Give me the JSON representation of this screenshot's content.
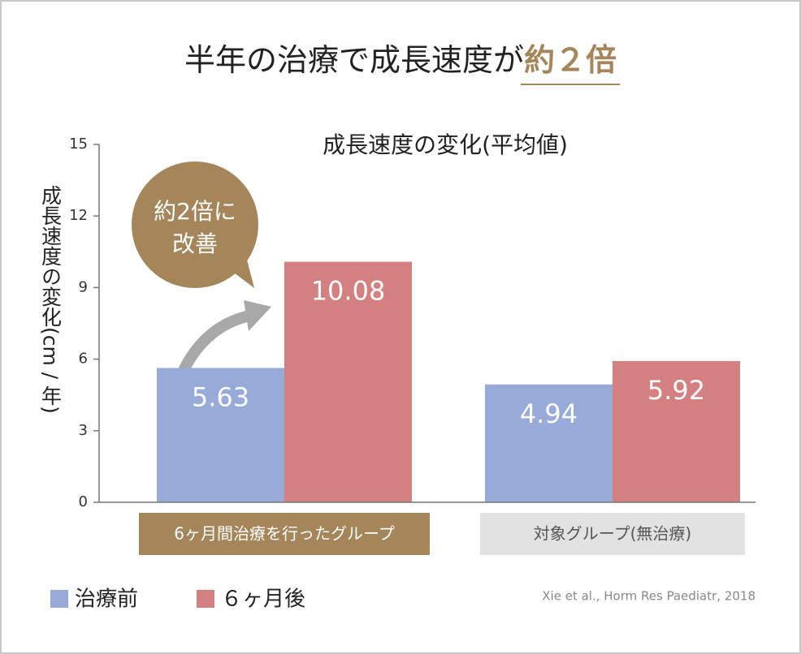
{
  "chart_data": {
    "type": "bar",
    "title": "半年の治療で成長速度が",
    "title_emphasis": "約２倍",
    "subtitle": "成長速度の変化(平均値)",
    "ylabel": "成長速度の変化(cm / 年)",
    "categories": [
      "6ヶ月間治療を行ったグループ",
      "対象グループ(無治療)"
    ],
    "category_box_colors": [
      "#a5855a",
      "#e2e2e2"
    ],
    "series": [
      {
        "name": "治療前",
        "color": "#97aad8",
        "values": [
          5.63,
          4.94
        ]
      },
      {
        "name": "６ヶ月後",
        "color": "#d48080",
        "values": [
          10.08,
          5.92
        ]
      }
    ],
    "ylim": [
      0,
      15
    ],
    "yticks": [
      0,
      3,
      6,
      9,
      12,
      15
    ],
    "annotation": [
      "約2倍に",
      "改善"
    ],
    "source": "Xie et al., Horm Res Paediatr, 2018"
  }
}
